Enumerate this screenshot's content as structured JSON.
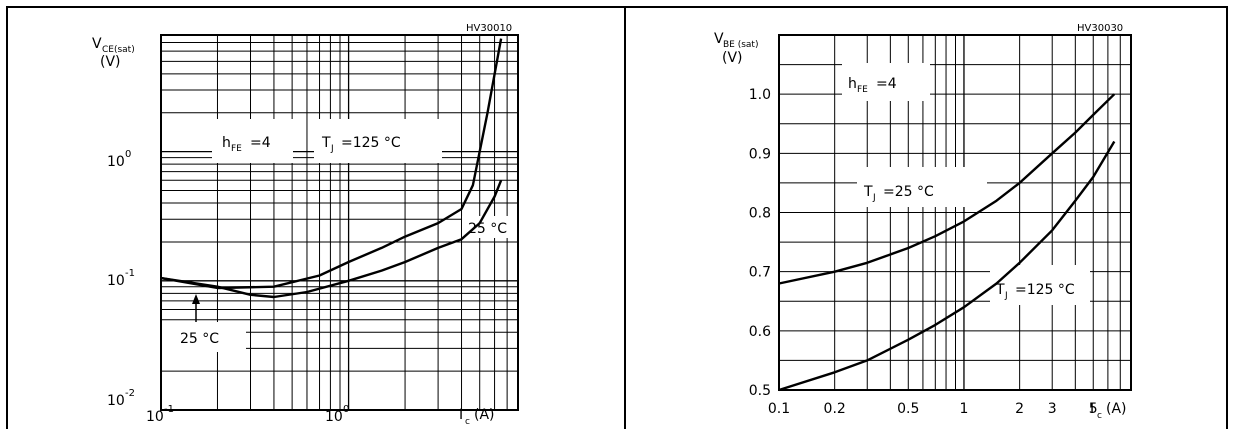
{
  "chart_data": [
    {
      "type": "line",
      "code": "HV30010",
      "ylabel_main": "V",
      "ylabel_sub": "CE(sat)",
      "ylabel_unit": "(V)",
      "xlabel_main": "I",
      "xlabel_sub": "c",
      "xlabel_unit": "(A)",
      "xscale": "log",
      "yscale": "log",
      "xlim": [
        0.1,
        8
      ],
      "ylim": [
        0.01,
        8
      ],
      "xticks": [
        {
          "base": "10",
          "exp": "-1"
        },
        {
          "base": "10",
          "exp": "0"
        }
      ],
      "yticks": [
        {
          "base": "10",
          "exp": "-2"
        },
        {
          "base": "10",
          "exp": "-1"
        },
        {
          "base": "10",
          "exp": "0"
        }
      ],
      "annotations": {
        "hfe_main": "h",
        "hfe_sub": "FE",
        "hfe_value": "=4",
        "tj_main": "T",
        "tj_sub": "J",
        "tj_value": "=125 °C",
        "t25_right": "25 °C",
        "t25_low": "25 °C"
      },
      "series": [
        {
          "x": [
            0.1,
            0.2,
            0.4,
            0.7,
            1.0,
            1.5,
            2.0,
            3.0,
            4.0,
            4.6,
            5.5,
            6.5
          ],
          "y": [
            0.105,
            0.088,
            0.09,
            0.11,
            0.14,
            0.18,
            0.22,
            0.28,
            0.36,
            0.55,
            2.0,
            7.5
          ]
        },
        {
          "x": [
            0.1,
            0.2,
            0.3,
            0.4,
            0.6,
            1.0,
            1.5,
            2.0,
            3.0,
            4.0,
            5.0,
            6.0,
            6.5
          ],
          "y": [
            0.105,
            0.09,
            0.078,
            0.075,
            0.082,
            0.1,
            0.12,
            0.14,
            0.18,
            0.21,
            0.28,
            0.45,
            0.6
          ]
        }
      ]
    },
    {
      "type": "line",
      "code": "HV30030",
      "ylabel_main": "V",
      "ylabel_sub": "BE (sat)",
      "ylabel_unit": "(V)",
      "xlabel_main": "I",
      "xlabel_sub": "c",
      "xlabel_unit": "(A)",
      "xscale": "log",
      "yscale": "linear",
      "xlim": [
        0.1,
        8
      ],
      "ylim": [
        0.5,
        1.1
      ],
      "xtick_values": [
        0.1,
        0.2,
        0.5,
        1,
        2,
        3,
        5
      ],
      "xtick_labels": [
        "0.1",
        "0.2",
        "0.5",
        "1",
        "2",
        "3",
        "5"
      ],
      "ytick_values": [
        0.5,
        0.6,
        0.7,
        0.8,
        0.9,
        1.0
      ],
      "ytick_labels": [
        "0.5",
        "0.6",
        "0.7",
        "0.8",
        "0.9",
        "1.0"
      ],
      "annotations": {
        "hfe_main": "h",
        "hfe_sub": "FE",
        "hfe_value": "=4",
        "tj25_main": "T",
        "tj25_sub": "J",
        "tj25_value": "=25 °C",
        "tj125_main": "T",
        "tj125_sub": "J",
        "tj125_value": "=125 °C"
      },
      "series": [
        {
          "x": [
            0.1,
            0.2,
            0.3,
            0.5,
            0.7,
            1.0,
            1.5,
            2.0,
            3.0,
            4.0,
            5.0,
            6.5
          ],
          "y": [
            0.68,
            0.7,
            0.715,
            0.74,
            0.76,
            0.785,
            0.82,
            0.85,
            0.9,
            0.935,
            0.965,
            1.0
          ]
        },
        {
          "x": [
            0.1,
            0.2,
            0.3,
            0.5,
            0.7,
            1.0,
            1.5,
            2.0,
            3.0,
            4.0,
            5.0,
            6.5
          ],
          "y": [
            0.5,
            0.53,
            0.55,
            0.585,
            0.61,
            0.64,
            0.68,
            0.715,
            0.77,
            0.82,
            0.86,
            0.92
          ]
        }
      ]
    }
  ]
}
